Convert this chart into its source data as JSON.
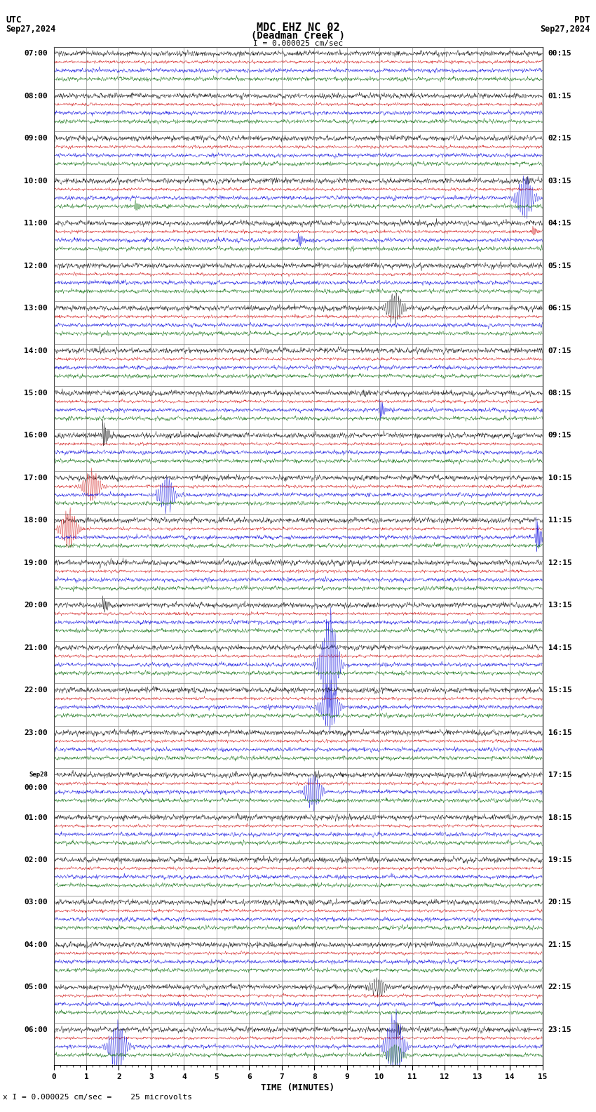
{
  "title_line1": "MDC EHZ NC 02",
  "title_line2": "(Deadman Creek )",
  "title_scale": "I = 0.000025 cm/sec",
  "utc_label": "UTC",
  "utc_date": "Sep27,2024",
  "pdt_label": "PDT",
  "pdt_date": "Sep27,2024",
  "xlabel": "TIME (MINUTES)",
  "bottom_note": "x I = 0.000025 cm/sec =    25 microvolts",
  "bg_color": "#ffffff",
  "trace_colors": [
    "#000000",
    "#cc0000",
    "#0000dd",
    "#006600"
  ],
  "n_groups": 24,
  "minutes_per_row": 15,
  "left_labels": [
    "07:00",
    "08:00",
    "09:00",
    "10:00",
    "11:00",
    "12:00",
    "13:00",
    "14:00",
    "15:00",
    "16:00",
    "17:00",
    "18:00",
    "19:00",
    "20:00",
    "21:00",
    "22:00",
    "23:00",
    "Sep28\n00:00",
    "01:00",
    "02:00",
    "03:00",
    "04:00",
    "05:00",
    "06:00"
  ],
  "right_labels": [
    "00:15",
    "01:15",
    "02:15",
    "03:15",
    "04:15",
    "05:15",
    "06:15",
    "07:15",
    "08:15",
    "09:15",
    "10:15",
    "11:15",
    "12:15",
    "13:15",
    "14:15",
    "15:15",
    "16:15",
    "17:15",
    "18:15",
    "19:15",
    "20:15",
    "21:15",
    "22:15",
    "23:15"
  ],
  "noise_scales": [
    0.04,
    0.022,
    0.03,
    0.03
  ],
  "intra_offsets": [
    0.84,
    0.64,
    0.44,
    0.24
  ],
  "seed": 42
}
